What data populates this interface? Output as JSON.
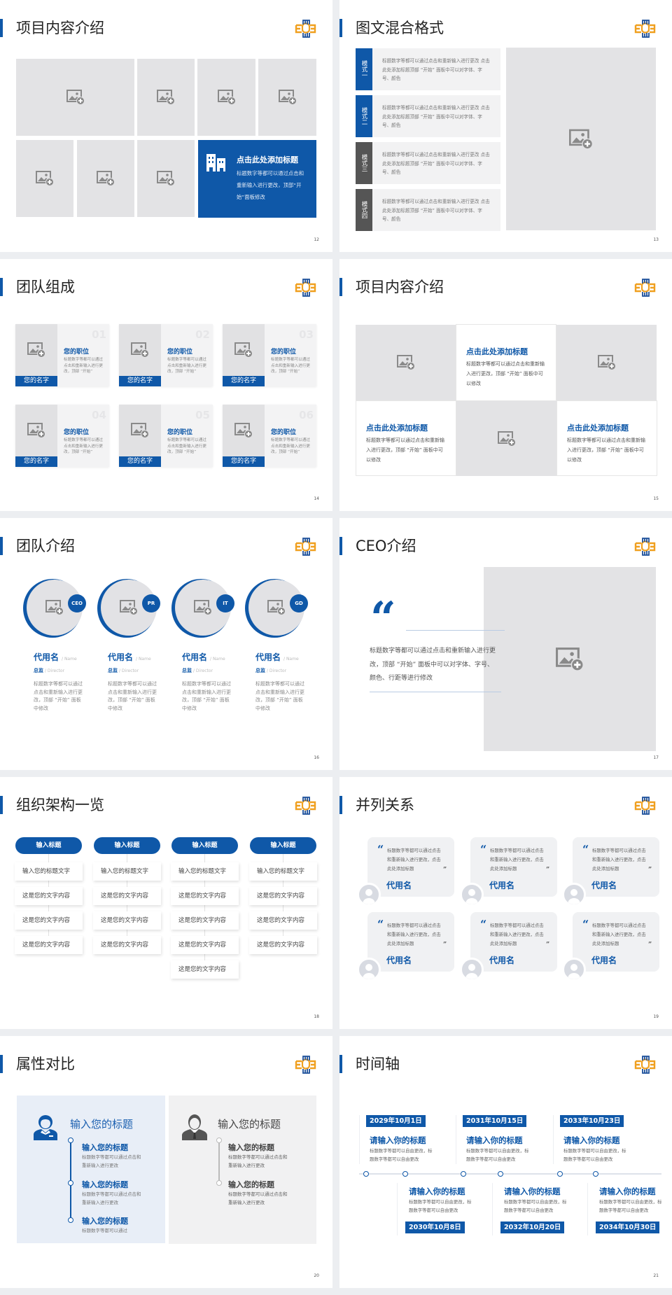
{
  "colors": {
    "accent": "#0f58a8",
    "placeholder": "#e3e3e5",
    "logo_orange": "#f0a020",
    "logo_blue": "#1b4f9a"
  },
  "icons": {
    "placeholder": "image-add-icon",
    "logo": "brand-logo-icon"
  },
  "slides": [
    {
      "page": "12",
      "title": "项目内容介绍",
      "feature": {
        "title": "点击此处添加标题",
        "body": "标题数字等都可以通过点击和重新输入进行更改，顶部“开始”面板修改"
      }
    },
    {
      "page": "13",
      "title": "图文混合格式",
      "modes": [
        {
          "label": "模式一",
          "text": "标题数字等都可以通过点击和重新输入进行更改 点击此处添加标题顶部 “开始” 面板中可以对字体、字号、颜色"
        },
        {
          "label": "模式二",
          "text": "标题数字等都可以通过点击和重新输入进行更改 点击此处添加标题顶部 “开始” 面板中可以对字体、字号、颜色"
        },
        {
          "label": "模式三",
          "text": "标题数字等都可以通过点击和重新输入进行更改 点击此处添加标题顶部 “开始” 面板中可以对字体、字号、颜色"
        },
        {
          "label": "模式四",
          "text": "标题数字等都可以通过点击和重新输入进行更改 点击此处添加标题顶部 “开始” 面板中可以对字体、字号、颜色"
        }
      ]
    },
    {
      "page": "14",
      "title": "团队组成",
      "members": [
        {
          "num": "01",
          "position": "您的职位",
          "text": "标题数字等都可以通过点击和重新输入进行更改，顶部 “开始”",
          "name": "您的名字"
        },
        {
          "num": "02",
          "position": "您的职位",
          "text": "标题数字等都可以通过点击和重新输入进行更改，顶部 “开始”",
          "name": "您的名字"
        },
        {
          "num": "03",
          "position": "您的职位",
          "text": "标题数字等都可以通过点击和重新输入进行更改，顶部 “开始”",
          "name": "您的名字"
        },
        {
          "num": "04",
          "position": "您的职位",
          "text": "标题数字等都可以通过点击和重新输入进行更改，顶部 “开始”",
          "name": "您的名字"
        },
        {
          "num": "05",
          "position": "您的职位",
          "text": "标题数字等都可以通过点击和重新输入进行更改，顶部 “开始”",
          "name": "您的名字"
        },
        {
          "num": "06",
          "position": "您的职位",
          "text": "标题数字等都可以通过点击和重新输入进行更改，顶部 “开始”",
          "name": "您的名字"
        }
      ]
    },
    {
      "page": "15",
      "title": "项目内容介绍",
      "cards": [
        {
          "title": "点击此处添加标题",
          "text": "标题数字等都可以通过点击和重新输入进行更改，顶部 “开始” 面板中可以修改"
        },
        {
          "title": "点击此处添加标题",
          "text": "标题数字等都可以通过点击和重新输入进行更改，顶部 “开始” 面板中可以修改"
        },
        {
          "title": "点击此处添加标题",
          "text": "标题数字等都可以通过点击和重新输入进行更改，顶部 “开始” 面板中可以修改"
        }
      ]
    },
    {
      "page": "16",
      "title": "团队介绍",
      "people": [
        {
          "badge": "CEO",
          "name": "代用名",
          "name_en": "/ Name",
          "role": "总监",
          "role_en": "/  Director",
          "text": "标题数字等都可以通过点击和重新输入进行更改，顶部 “开始” 面板中修改"
        },
        {
          "badge": "PR",
          "name": "代用名",
          "name_en": "/ Name",
          "role": "总监",
          "role_en": "/  Director",
          "text": "标题数字等都可以通过点击和重新输入进行更改，顶部 “开始” 面板中修改"
        },
        {
          "badge": "IT",
          "name": "代用名",
          "name_en": "/ Name",
          "role": "总监",
          "role_en": "/  Director",
          "text": "标题数字等都可以通过点击和重新输入进行更改，顶部 “开始” 面板中修改"
        },
        {
          "badge": "GD",
          "name": "代用名",
          "name_en": "/ Name",
          "role": "总监",
          "role_en": "/  Director",
          "text": "标题数字等都可以通过点击和重新输入进行更改，顶部 “开始” 面板中修改"
        }
      ]
    },
    {
      "page": "17",
      "title": "CEO介绍",
      "quote_mark": "“",
      "quote": "标题数字等都可以通过点击和重新输入进行更改，顶部 “开始” 面板中可以对字体、字号、颜色、行距等进行修改"
    },
    {
      "page": "18",
      "title": "组织架构一览",
      "columns": [
        {
          "header": "输入标题",
          "items": [
            "输入您的标题文字",
            "这是您的文字内容",
            "这是您的文字内容",
            "这是您的文字内容"
          ]
        },
        {
          "header": "输入标题",
          "items": [
            "输入您的标题文字",
            "这是您的文字内容",
            "这是您的文字内容",
            "这是您的文字内容"
          ]
        },
        {
          "header": "输入标题",
          "items": [
            "输入您的标题文字",
            "这是您的文字内容",
            "这是您的文字内容",
            "这是您的文字内容",
            "这是您的文字内容"
          ]
        },
        {
          "header": "输入标题",
          "items": [
            "输入您的标题文字",
            "这是您的文字内容",
            "这是您的文字内容",
            "这是您的文字内容"
          ]
        }
      ]
    },
    {
      "page": "19",
      "title": "并列关系",
      "open_quote": "“",
      "close_quote": "”",
      "quotes": [
        {
          "text": "标题数字等都可以通过点击和重新输入进行更改，点击此处添加标题",
          "name": "代用名"
        },
        {
          "text": "标题数字等都可以通过点击和重新输入进行更改，点击此处添加标题",
          "name": "代用名"
        },
        {
          "text": "标题数字等都可以通过点击和重新输入进行更改，点击此处添加标题",
          "name": "代用名"
        },
        {
          "text": "标题数字等都可以通过点击和重新输入进行更改，点击此处添加标题",
          "name": "代用名"
        },
        {
          "text": "标题数字等都可以通过点击和重新输入进行更改，点击此处添加标题",
          "name": "代用名"
        },
        {
          "text": "标题数字等都可以通过点击和重新输入进行更改，点击此处添加标题",
          "name": "代用名"
        }
      ]
    },
    {
      "page": "20",
      "title": "属性对比",
      "left": {
        "heading": "输入您的标题",
        "items": [
          {
            "title": "输入您的标题",
            "text": "标题数字等都可以通过点击和重新输入进行更改"
          },
          {
            "title": "输入您的标题",
            "text": "标题数字等都可以通过点击和重新输入进行更改"
          },
          {
            "title": "输入您的标题",
            "text": "标题数字等都可以通过"
          }
        ]
      },
      "right": {
        "heading": "输入您的标题",
        "items": [
          {
            "title": "输入您的标题",
            "text": "标题数字等都可以通过点击和重新输入进行更改"
          },
          {
            "title": "输入您的标题",
            "text": "标题数字等都可以通过点击和重新输入进行更改"
          }
        ]
      }
    },
    {
      "page": "21",
      "title": "时间轴",
      "events": [
        {
          "date": "2029年10月1日",
          "title": "请输入你的标题",
          "text": "标题数字等都可以自由更改，标题数字等都可以自由更改"
        },
        {
          "date": "2030年10月8日",
          "title": "请输入你的标题",
          "text": "标题数字等都可以自由更改，标题数字等都可以自由更改"
        },
        {
          "date": "2031年10月15日",
          "title": "请输入你的标题",
          "text": "标题数字等都可以自由更改，标题数字等都可以自由更改"
        },
        {
          "date": "2032年10月20日",
          "title": "请输入你的标题",
          "text": "标题数字等都可以自由更改，标题数字等都可以自由更改"
        },
        {
          "date": "2033年10月23日",
          "title": "请输入你的标题",
          "text": "标题数字等都可以自由更改，标题数字等都可以自由更改"
        },
        {
          "date": "2034年10月30日",
          "title": "请输入你的标题",
          "text": "标题数字等都可以自由更改，标题数字等都可以自由更改"
        }
      ]
    }
  ]
}
